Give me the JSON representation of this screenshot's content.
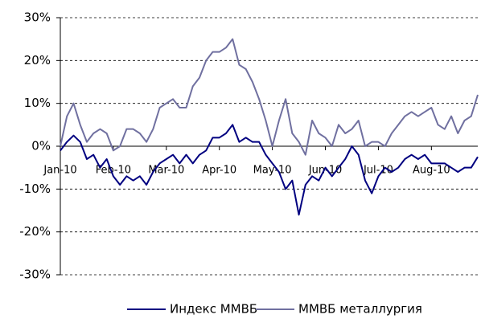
{
  "chart_data": {
    "type": "line",
    "categories": [
      "Jan-10",
      null,
      null,
      null,
      null,
      null,
      null,
      null,
      "Feb-10",
      null,
      null,
      null,
      null,
      null,
      null,
      null,
      "Mar-10",
      null,
      null,
      null,
      null,
      null,
      null,
      null,
      "Apr-10",
      null,
      null,
      null,
      null,
      null,
      null,
      null,
      "May-10",
      null,
      null,
      null,
      null,
      null,
      null,
      null,
      "Jun-10",
      null,
      null,
      null,
      null,
      null,
      null,
      null,
      "Jul-10",
      null,
      null,
      null,
      null,
      null,
      null,
      null,
      "Aug-10",
      null,
      null,
      null,
      null,
      null,
      null,
      null
    ],
    "series": [
      {
        "name": "Индекс ММВБ",
        "color": "#000080",
        "values": [
          -1,
          1,
          2.5,
          1,
          -3,
          -2,
          -5,
          -3,
          -7,
          -9,
          -7,
          -8,
          -7,
          -9,
          -6,
          -4,
          -3,
          -2,
          -4,
          -2,
          -4,
          -2,
          -1,
          2,
          2,
          3,
          5,
          1,
          2,
          1,
          1,
          -2,
          -4,
          -6,
          -10,
          -8,
          -16,
          -9,
          -7,
          -8,
          -5,
          -7,
          -5,
          -3,
          0,
          -2,
          -8,
          -11,
          -7,
          -5,
          -6,
          -5,
          -3,
          -2,
          -3,
          -2,
          -4,
          -4,
          -4,
          -5,
          -6,
          -5,
          -5,
          -2.5
        ]
      },
      {
        "name": "ММВБ металлургия",
        "color": "#7070a0",
        "values": [
          0,
          7,
          10,
          5,
          1,
          3,
          4,
          3,
          -1,
          0,
          4,
          4,
          3,
          1,
          4,
          9,
          10,
          11,
          9,
          9,
          14,
          16,
          20,
          22,
          22,
          23,
          25,
          19,
          18,
          15,
          11,
          6,
          0,
          6,
          11,
          3,
          1,
          -2,
          6,
          3,
          2,
          0,
          5,
          3,
          4,
          6,
          0,
          1,
          1,
          0,
          3,
          5,
          7,
          8,
          7,
          8,
          9,
          5,
          4,
          7,
          3,
          6,
          7,
          12
        ]
      }
    ],
    "ylim": [
      -30,
      30
    ],
    "yticks": [
      {
        "value": 30,
        "label": "30%"
      },
      {
        "value": 20,
        "label": "20%"
      },
      {
        "value": 10,
        "label": "10%"
      },
      {
        "value": 0,
        "label": "0%"
      },
      {
        "value": -10,
        "label": "-10%"
      },
      {
        "value": -20,
        "label": "-20%"
      },
      {
        "value": -30,
        "label": "-30%"
      }
    ],
    "grid": true,
    "legend": "bottom"
  }
}
